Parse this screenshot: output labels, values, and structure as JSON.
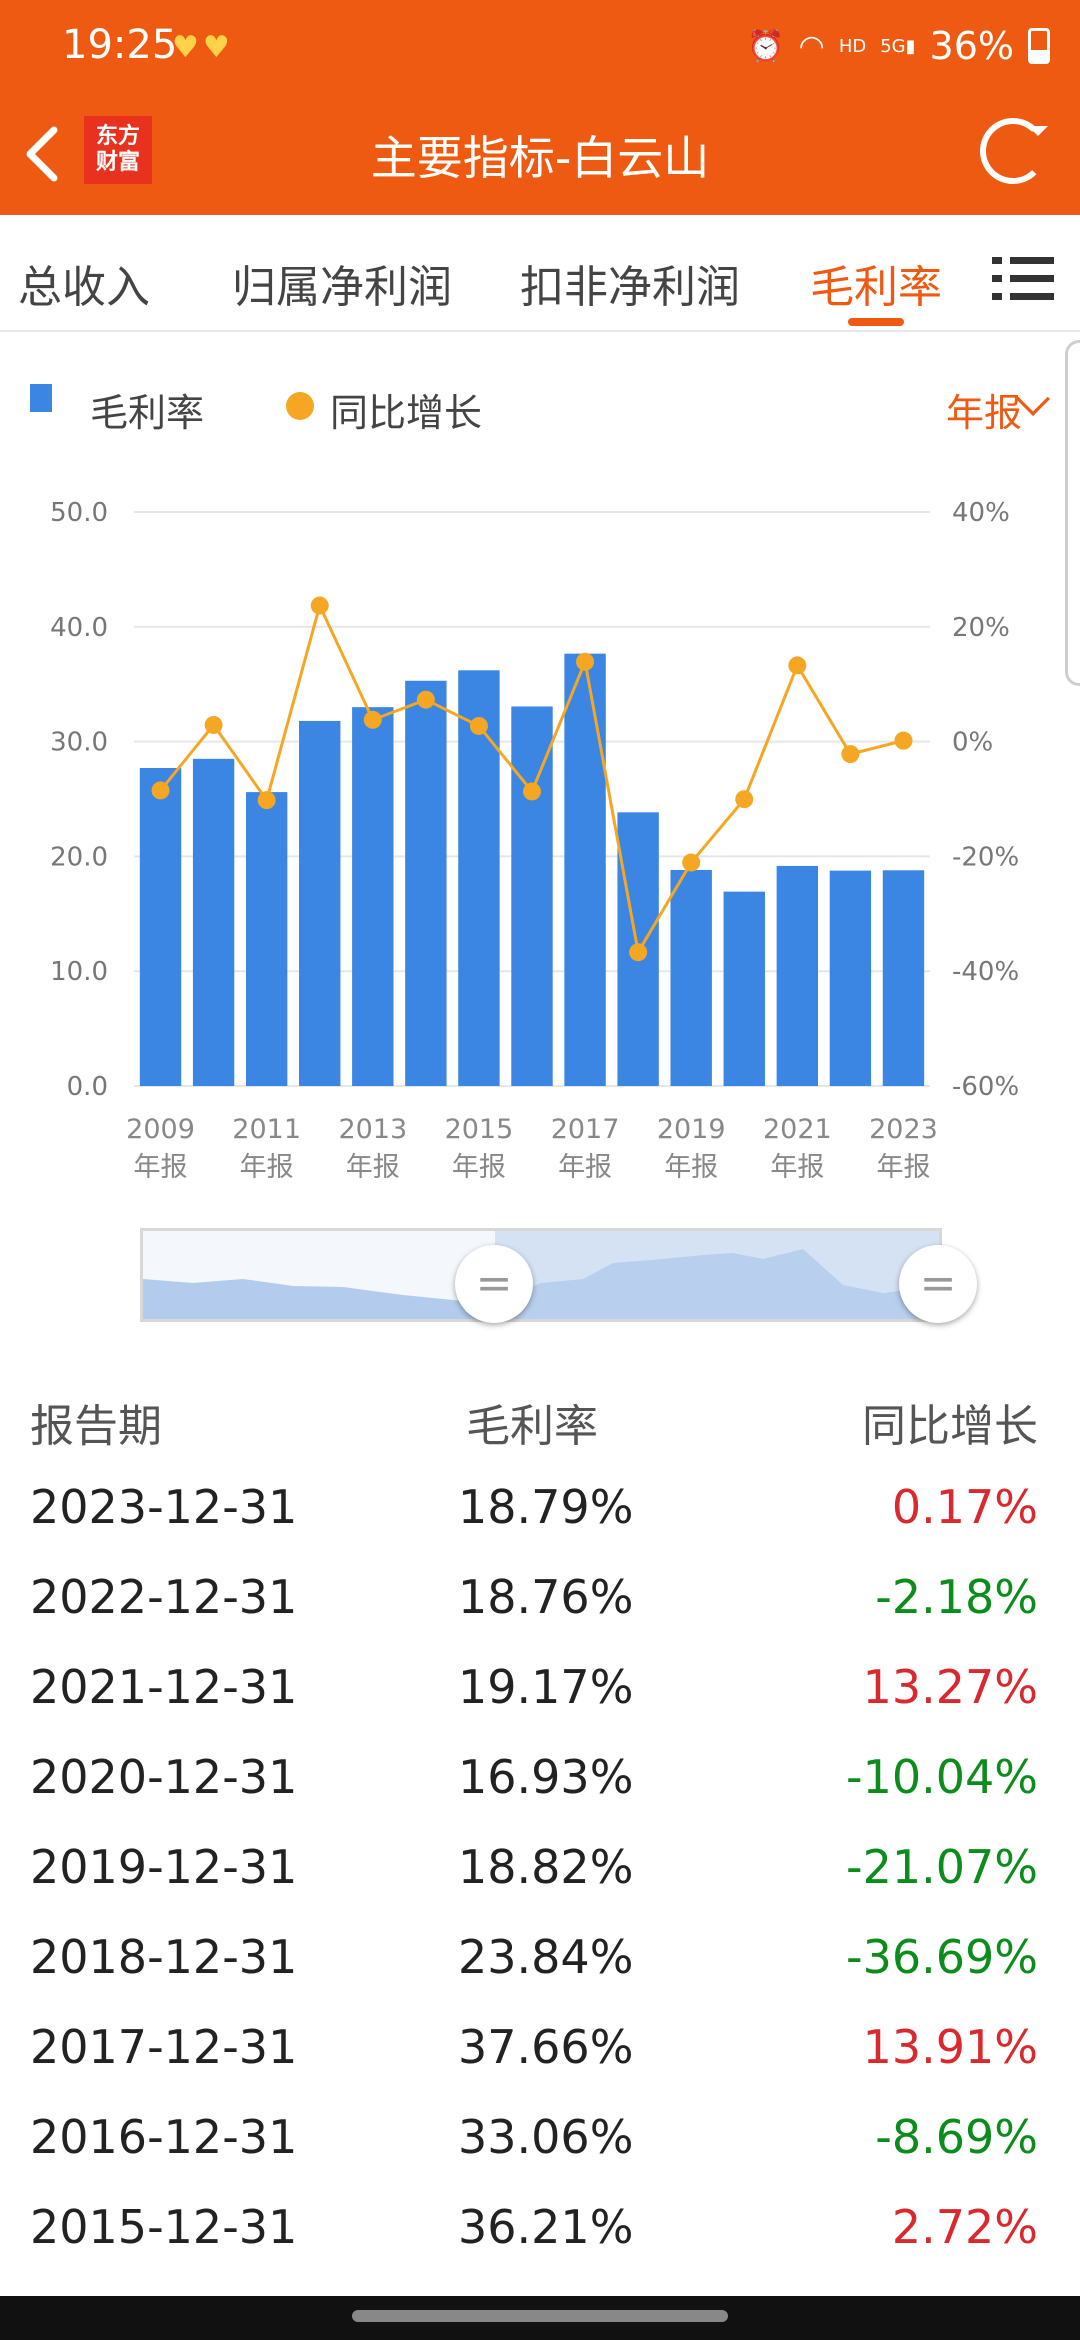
{
  "status_bar": {
    "time": "19:25",
    "battery": "36%",
    "network": "5G",
    "hd": "HD"
  },
  "header": {
    "title": "主要指标-白云山",
    "logo_line1": "东方",
    "logo_line2": "财富"
  },
  "tabs": [
    {
      "label": "总收入",
      "active": false
    },
    {
      "label": "归属净利润",
      "active": false
    },
    {
      "label": "扣非净利润",
      "active": false
    },
    {
      "label": "毛利率",
      "active": true
    }
  ],
  "legend": {
    "bar": "毛利率",
    "line": "同比增长",
    "period": "年报"
  },
  "chart_data": {
    "type": "bar",
    "categories": [
      "2009",
      "2010",
      "2011",
      "2012",
      "2013",
      "2014",
      "2015",
      "2016",
      "2017",
      "2018",
      "2019",
      "2020",
      "2021",
      "2022",
      "2023"
    ],
    "x_tick_labels": [
      "2009",
      "2011",
      "2013",
      "2015",
      "2017",
      "2019",
      "2021",
      "2023"
    ],
    "x_tick_sublabel": "年报",
    "series": [
      {
        "name": "毛利率",
        "type": "bar",
        "axis": "left",
        "color": "#3a86e2",
        "values": [
          27.7,
          28.5,
          25.6,
          31.8,
          33.0,
          35.3,
          36.21,
          33.06,
          37.66,
          23.84,
          18.82,
          16.93,
          19.17,
          18.76,
          18.79
        ]
      },
      {
        "name": "同比增长",
        "type": "line",
        "axis": "right",
        "color": "#f5a623",
        "values": [
          -8.5,
          2.9,
          -10.2,
          23.7,
          3.8,
          7.3,
          2.72,
          -8.69,
          13.91,
          -36.69,
          -21.07,
          -10.04,
          13.27,
          -2.18,
          0.17
        ]
      }
    ],
    "left_axis": {
      "ticks": [
        "0.0",
        "10.0",
        "20.0",
        "30.0",
        "40.0",
        "50.0"
      ],
      "min": 0,
      "max": 50
    },
    "right_axis": {
      "ticks": [
        "-60%",
        "-40%",
        "-20%",
        "0%",
        "20%",
        "40%"
      ],
      "min": -60,
      "max": 40
    },
    "grid": true
  },
  "navigator": {
    "left_handle": "=",
    "right_handle": "="
  },
  "table": {
    "headers": [
      "报告期",
      "毛利率",
      "同比增长"
    ],
    "rows": [
      {
        "date": "2023-12-31",
        "margin": "18.79%",
        "yoy": "0.17%",
        "sign": "pos"
      },
      {
        "date": "2022-12-31",
        "margin": "18.76%",
        "yoy": "-2.18%",
        "sign": "neg"
      },
      {
        "date": "2021-12-31",
        "margin": "19.17%",
        "yoy": "13.27%",
        "sign": "pos"
      },
      {
        "date": "2020-12-31",
        "margin": "16.93%",
        "yoy": "-10.04%",
        "sign": "neg"
      },
      {
        "date": "2019-12-31",
        "margin": "18.82%",
        "yoy": "-21.07%",
        "sign": "neg"
      },
      {
        "date": "2018-12-31",
        "margin": "23.84%",
        "yoy": "-36.69%",
        "sign": "neg"
      },
      {
        "date": "2017-12-31",
        "margin": "37.66%",
        "yoy": "13.91%",
        "sign": "pos"
      },
      {
        "date": "2016-12-31",
        "margin": "33.06%",
        "yoy": "-8.69%",
        "sign": "neg"
      },
      {
        "date": "2015-12-31",
        "margin": "36.21%",
        "yoy": "2.72%",
        "sign": "pos"
      }
    ]
  },
  "colors": {
    "brand": "#ee5a12",
    "bar": "#3a86e2",
    "line": "#f5a623",
    "positive": "#d9292e",
    "negative": "#0b8c1b"
  }
}
